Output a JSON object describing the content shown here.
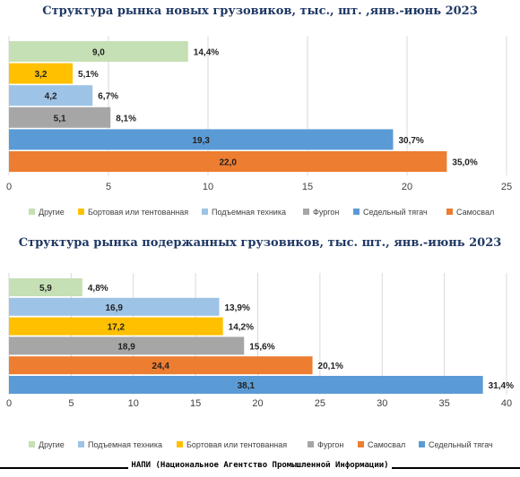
{
  "chart_data": [
    {
      "type": "bar",
      "orientation": "horizontal",
      "title": "Структура рынка новых грузовиков, тыс., шт. ,янв.-июнь 2023",
      "xlim": [
        0,
        25
      ],
      "x_ticks": [
        "0",
        "5",
        "10",
        "15",
        "20",
        "25"
      ],
      "grid": true,
      "legend_position": "bottom",
      "categories": [
        "Другие",
        "Бортовая или тентованная",
        "Подъемная техника",
        "Фургон",
        "Седельный тягач",
        "Самосвал"
      ],
      "colors": [
        "#c5e0b4",
        "#ffc000",
        "#9dc3e6",
        "#a6a6a6",
        "#5b9bd5",
        "#ed7d31"
      ],
      "values": [
        9.0,
        3.2,
        4.2,
        5.1,
        19.3,
        22.0
      ],
      "value_labels": [
        "9,0",
        "3,2",
        "4,2",
        "5,1",
        "19,3",
        "22,0"
      ],
      "share_labels": [
        "14,4%",
        "5,1%",
        "6,7%",
        "8,1%",
        "30,7%",
        "35,0%"
      ]
    },
    {
      "type": "bar",
      "orientation": "horizontal",
      "title": "Структура рынка подержанных грузовиков, тыс. шт., янв.-июнь 2023",
      "xlim": [
        0,
        40
      ],
      "x_ticks": [
        "0",
        "5",
        "10",
        "15",
        "20",
        "25",
        "30",
        "35",
        "40"
      ],
      "grid": true,
      "legend_position": "bottom",
      "categories": [
        "Другие",
        "Подъемная техника",
        "Бортовая или тентованная",
        "Фургон",
        "Самосвал",
        "Седельный тягач"
      ],
      "colors": [
        "#c5e0b4",
        "#9dc3e6",
        "#ffc000",
        "#a6a6a6",
        "#ed7d31",
        "#5b9bd5"
      ],
      "values": [
        5.9,
        16.9,
        17.2,
        18.9,
        24.4,
        38.1
      ],
      "value_labels": [
        "5,9",
        "16,9",
        "17,2",
        "18,9",
        "24,4",
        "38,1"
      ],
      "share_labels": [
        "4,8%",
        "13,9%",
        "14,2%",
        "15,6%",
        "20,1%",
        "31,4%"
      ]
    }
  ],
  "footer": {
    "text": "НАПИ (Национальное Агентство Промышленной Информации)"
  }
}
